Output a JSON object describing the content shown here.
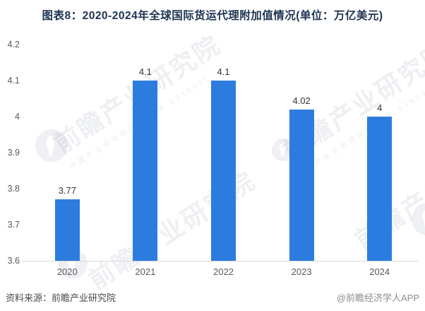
{
  "title": "图表8：2020-2024年全球国际货运代理附加值情况(单位：万亿美元)",
  "chart_data": {
    "type": "bar",
    "title": "图表8：2020-2024年全球国际货运代理附加值情况(单位：万亿美元)",
    "categories": [
      "2020",
      "2021",
      "2022",
      "2023",
      "2024"
    ],
    "values": [
      3.77,
      4.1,
      4.1,
      4.02,
      4
    ],
    "value_labels": [
      "3.77",
      "4.1",
      "4.1",
      "4.02",
      "4"
    ],
    "xlabel": "",
    "ylabel": "",
    "unit": "万亿美元",
    "ylim": [
      3.6,
      4.2
    ],
    "y_ticks": [
      4.2,
      4.1,
      4,
      3.9,
      3.8,
      3.7,
      3.6
    ],
    "y_tick_labels": [
      "4.2",
      "4.1",
      "4",
      "3.9",
      "3.8",
      "3.7",
      "3.6"
    ],
    "bar_color": "#2c7ce0",
    "grid": false,
    "legend": null
  },
  "footer": {
    "source": "资料来源：前瞻产业研究院",
    "credit": "@前瞻经济学人APP"
  },
  "watermark": {
    "text": "前瞻产业研究院",
    "subtext": "中国产业咨询领导者(股票·839599)",
    "logo": "qianzhan-logo"
  },
  "colors": {
    "title": "#1d3252",
    "bar": "#2c7ce0",
    "tick_label": "#595959",
    "value_label": "#333333",
    "axis_line": "#d9d9d9",
    "source_text": "#4a4a4a",
    "credit_text": "#8c8c8c"
  }
}
